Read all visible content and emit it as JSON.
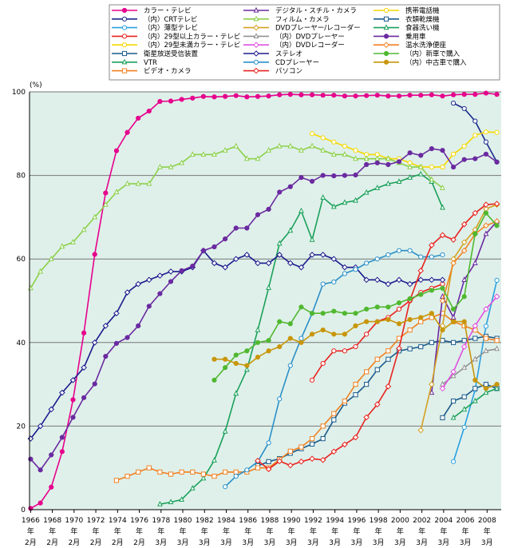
{
  "chart_data": {
    "type": "line",
    "ylabel": "(%)",
    "ylim": [
      0,
      100
    ],
    "yticks": [
      0,
      20,
      40,
      60,
      80,
      100
    ],
    "xlim": [
      1966.0,
      2009.4
    ],
    "xtick_years": [
      1966,
      1968,
      1970,
      1972,
      1974,
      1976,
      1978,
      1980,
      1982,
      1984,
      1986,
      1988,
      1990,
      1992,
      1994,
      1996,
      1998,
      2000,
      2002,
      2004,
      2006,
      2008
    ],
    "xtick_month_labels": [
      "2月",
      "2月",
      "2月",
      "2月",
      "2月",
      "2月",
      "3月",
      "3月",
      "3月",
      "3月",
      "3月",
      "3月",
      "3月",
      "3月",
      "3月",
      "3月",
      "3月",
      "3月",
      "3月",
      "3月",
      "3月",
      "3月"
    ],
    "xtick_nen": "年",
    "grid": true,
    "background": "#dff0ea",
    "legend_position": "top",
    "series": [
      {
        "name": "カラー・テレビ",
        "color": "#e6008c",
        "marker": "circle",
        "dash": "",
        "x": [
          1966.1,
          1967,
          1968,
          1969,
          1970,
          1971,
          1972,
          1973,
          1974,
          1975,
          1976,
          1977,
          1978,
          1979,
          1980,
          1981,
          1982,
          1983,
          1984,
          1985,
          1986,
          1987,
          1988,
          1989,
          1990,
          1991,
          1992,
          1993,
          1994,
          1995,
          1996,
          1997,
          1998,
          1999,
          2000,
          2001,
          2002,
          2003,
          2004,
          2005,
          2006,
          2007,
          2008,
          2009
        ],
        "y": [
          0.3,
          1.6,
          5.4,
          13.9,
          26.3,
          42.3,
          61.1,
          75.8,
          85.9,
          90.3,
          93.7,
          95.4,
          97.7,
          97.8,
          98.2,
          98.5,
          98.9,
          98.8,
          98.9,
          99.1,
          98.8,
          98.9,
          99.0,
          99.3,
          99.4,
          99.3,
          99.3,
          99.2,
          99.2,
          99.0,
          99.0,
          99.1,
          99.2,
          99.0,
          99.0,
          99.2,
          99.2,
          99.3,
          99.0,
          99.3,
          99.4,
          99.4,
          99.7,
          99.4
        ]
      },
      {
        "name": "（内）CRTテレビ",
        "color": "#1a2a8c",
        "marker": "circle-open",
        "dash": "",
        "x": [
          2005,
          2006,
          2007,
          2008,
          2009
        ],
        "y": [
          97.3,
          96.0,
          93.0,
          88.0,
          83.2
        ]
      },
      {
        "name": "（内）薄型テレビ",
        "color": "#2aa0e0",
        "marker": "circle-open",
        "dash": "",
        "x": [
          2005,
          2006,
          2007,
          2008,
          2009
        ],
        "y": [
          11.5,
          19.7,
          28.7,
          43.9,
          54.9
        ]
      },
      {
        "name": "（内）29型以上カラー・テレビ",
        "color": "#e8221e",
        "marker": "circle-open",
        "dash": "",
        "x": [
          1992,
          1993,
          1994,
          1995,
          1996,
          1997,
          1998,
          1999,
          2000,
          2001,
          2002,
          2003,
          2004
        ],
        "y": [
          31,
          35,
          38,
          38,
          39,
          42,
          45,
          46,
          48,
          50,
          52,
          53,
          54
        ]
      },
      {
        "name": "（内）29型未満カラー・テレビ",
        "color": "#f5d800",
        "marker": "circle-open",
        "dash": "",
        "x": [
          1992,
          1993,
          1994,
          1995,
          1996,
          1997,
          1998,
          1999,
          2000,
          2001,
          2002,
          2003,
          2004
        ],
        "y": [
          90,
          89,
          88,
          87,
          86,
          85,
          85,
          84,
          84,
          83,
          82,
          82,
          82
        ]
      },
      {
        "name": "衛星放送受信装置",
        "color": "#1a5a8c",
        "marker": "square-open",
        "dash": "",
        "x": [
          1987,
          1988,
          1989,
          1990,
          1991,
          1992,
          1993,
          1994,
          1995,
          1996,
          1997,
          1998,
          1999,
          2000,
          2001,
          2002,
          2003,
          2004,
          2005,
          2006,
          2007,
          2008,
          2009
        ],
        "y": [
          10.5,
          11.5,
          12.2,
          13.5,
          14.6,
          15.7,
          17.0,
          21.5,
          25.5,
          27.5,
          30.0,
          33.5,
          36.0,
          38.0,
          38.5,
          39.0,
          40.0,
          40.5,
          40.0,
          40.5,
          41.0,
          41.5,
          41.0
        ]
      },
      {
        "name": "VTR",
        "color": "#1aa05a",
        "marker": "triangle-open",
        "dash": "",
        "x": [
          1978,
          1979,
          1980,
          1981,
          1982,
          1983,
          1984,
          1985,
          1986,
          1987,
          1988,
          1989,
          1990,
          1991,
          1992,
          1993,
          1994,
          1995,
          1996,
          1997,
          1998,
          1999,
          2000,
          2001,
          2002,
          2003,
          2004
        ],
        "y": [
          1.3,
          1.8,
          2.4,
          5.1,
          7.5,
          11.8,
          18.7,
          27.8,
          33.5,
          43.0,
          53.1,
          63.7,
          66.8,
          71.5,
          64.6,
          74.7,
          72.5,
          73.5,
          74.0,
          75.9,
          77.0,
          78.0,
          78.5,
          79.5,
          80.3,
          78.5,
          72.3
        ]
      },
      {
        "name": "ビデオ・カメラ",
        "color": "#f08020",
        "marker": "square-open",
        "dash": "",
        "x": [
          1974,
          1975,
          1976,
          1977,
          1978,
          1979,
          1980,
          1981,
          1982,
          1983,
          1984,
          1985,
          1986,
          1987,
          1988,
          1989,
          1990,
          1991,
          1992,
          1993,
          1994,
          1995,
          1996,
          1997,
          1998,
          1999,
          2000,
          2001,
          2002,
          2003,
          2004,
          2005,
          2006,
          2007,
          2008,
          2009
        ],
        "y": [
          7,
          8,
          9,
          10,
          9,
          8.5,
          9,
          9,
          8.5,
          8,
          9,
          9,
          9,
          10,
          10,
          12,
          14,
          15,
          17,
          20,
          23,
          26,
          30,
          33,
          36,
          38,
          41,
          43,
          45,
          46,
          47,
          45,
          44,
          43,
          41,
          40.5
        ]
      },
      {
        "name": "デジタル・スチル・カメラ",
        "color": "#6a2aa0",
        "marker": "triangle-open",
        "dash": "",
        "x": [
          2003,
          2004,
          2005,
          2006,
          2007,
          2008,
          2009
        ],
        "y": [
          28,
          51,
          46,
          55,
          59,
          66,
          69
        ]
      },
      {
        "name": "フィルム・カメラ",
        "color": "#8cd04a",
        "marker": "triangle-open",
        "dash": "",
        "x": [
          1966.1,
          1967,
          1968,
          1969,
          1970,
          1971,
          1972,
          1973,
          1974,
          1975,
          1976,
          1977,
          1978,
          1979,
          1980,
          1981,
          1982,
          1983,
          1984,
          1985,
          1986,
          1987,
          1988,
          1989,
          1990,
          1991,
          1992,
          1993,
          1994,
          1995,
          1996,
          1997,
          1998,
          1999,
          2000,
          2001,
          2002,
          2003,
          2004
        ],
        "y": [
          53,
          57,
          60,
          63,
          64,
          67,
          70,
          73,
          76,
          78,
          78,
          78,
          82,
          82,
          83,
          85,
          85,
          85,
          86,
          87,
          84,
          84,
          86,
          87,
          87,
          86,
          87,
          86,
          85,
          85,
          84,
          84,
          84,
          84,
          83,
          82,
          82,
          79,
          77
        ]
      },
      {
        "name": "DVDプレーヤー/レコーダー",
        "color": "#d4a020",
        "marker": "diamond-open",
        "dash": "",
        "x": [
          2002,
          2003,
          2004,
          2005,
          2006,
          2007,
          2008,
          2009
        ],
        "y": [
          19,
          30,
          44,
          60,
          64,
          67,
          72,
          73
        ]
      },
      {
        "name": "（内）DVDプレーヤー",
        "color": "#909090",
        "marker": "triangle-open",
        "dash": "",
        "x": [
          2004,
          2005,
          2006,
          2007,
          2008,
          2009
        ],
        "y": [
          30,
          32,
          34,
          36,
          38,
          38.5
        ]
      },
      {
        "name": "（内）DVDレコーダー",
        "color": "#e050e0",
        "marker": "diamond-open",
        "dash": "",
        "x": [
          2004,
          2005,
          2006,
          2007,
          2008,
          2009
        ],
        "y": [
          29,
          33,
          39,
          44,
          48,
          51
        ]
      },
      {
        "name": "ステレオ",
        "color": "#1a1a8c",
        "marker": "diamond-open",
        "dash": "",
        "x": [
          1966.1,
          1967,
          1968,
          1969,
          1970,
          1971,
          1972,
          1973,
          1974,
          1975,
          1976,
          1977,
          1978,
          1979,
          1980,
          1981,
          1982,
          1983,
          1984,
          1985,
          1986,
          1987,
          1988,
          1989,
          1990,
          1991,
          1992,
          1993,
          1994,
          1995,
          1996,
          1997,
          1998,
          1999,
          2000,
          2001,
          2002,
          2003,
          2004
        ],
        "y": [
          17,
          20,
          24,
          28,
          31,
          34,
          40,
          44,
          47,
          52,
          54,
          55,
          56,
          57,
          57,
          58,
          62,
          59,
          58,
          60,
          61,
          59,
          59,
          61,
          59,
          58,
          61,
          61,
          60,
          58,
          58,
          55,
          55,
          54,
          55,
          54,
          55,
          55,
          55
        ]
      },
      {
        "name": "CDプレーヤー",
        "color": "#2a90c8",
        "marker": "circle-open",
        "dash": "",
        "x": [
          1984,
          1985,
          1986,
          1987,
          1988,
          1989,
          1990,
          1991,
          1992,
          1993,
          1994,
          1995,
          1996,
          1997,
          1998,
          1999,
          2000,
          2001,
          2002,
          2003,
          2004
        ],
        "y": [
          5.5,
          8.0,
          9.5,
          11.5,
          16.0,
          26.5,
          34.5,
          41.0,
          47.0,
          54.0,
          54.5,
          56.5,
          57.5,
          59.0,
          60.0,
          61.0,
          62.0,
          62.0,
          60.5,
          60.5,
          61.0
        ]
      },
      {
        "name": "パソコン",
        "color": "#e8221e",
        "marker": "diamond-open",
        "dash": "",
        "x": [
          1987,
          1988,
          1989,
          1990,
          1991,
          1992,
          1993,
          1994,
          1995,
          1996,
          1997,
          1998,
          1999,
          2000,
          2001,
          2002,
          2003,
          2004,
          2005,
          2006,
          2007,
          2008,
          2009
        ],
        "y": [
          11.7,
          9.7,
          11.6,
          10.6,
          11.5,
          12.2,
          11.9,
          13.9,
          15.6,
          17.3,
          22.1,
          25.2,
          29.5,
          38.6,
          50.1,
          57.2,
          63.3,
          65.7,
          64.6,
          68.3,
          71.0,
          73.0,
          73.2
        ]
      },
      {
        "name": "携帯電話機",
        "color": "#f5d800",
        "marker": "circle-open",
        "dash": "",
        "x": [
          2004,
          2005,
          2006,
          2007,
          2008,
          2009
        ],
        "y": [
          82.0,
          85.1,
          87.0,
          89.6,
          90.4,
          90.3
        ]
      },
      {
        "name": "衣類乾燥機",
        "color": "#1a5a8c",
        "marker": "square-open",
        "dash": "",
        "x": [
          2004,
          2005,
          2006,
          2007,
          2008,
          2009
        ],
        "y": [
          22,
          26,
          27,
          29,
          30,
          29
        ]
      },
      {
        "name": "食器洗い機",
        "color": "#1aa05a",
        "marker": "triangle-open",
        "dash": "",
        "x": [
          2005,
          2006,
          2007,
          2008,
          2009
        ],
        "y": [
          22,
          24,
          26,
          28,
          29
        ]
      },
      {
        "name": "乗用車",
        "color": "#6a2aa0",
        "marker": "circle",
        "dash": "",
        "x": [
          1966.1,
          1967,
          1968,
          1969,
          1970,
          1971,
          1972,
          1973,
          1974,
          1975,
          1976,
          1977,
          1978,
          1979,
          1980,
          1981,
          1982,
          1983,
          1984,
          1985,
          1986,
          1987,
          1988,
          1989,
          1990,
          1991,
          1992,
          1993,
          1994,
          1995,
          1996,
          1997,
          1998,
          1999,
          2000,
          2001,
          2002,
          2003,
          2004,
          2005,
          2006,
          2007,
          2008,
          2009
        ],
        "y": [
          12.1,
          9.5,
          13.1,
          17.3,
          22.1,
          26.8,
          30.1,
          36.7,
          39.8,
          41.2,
          44.0,
          48.7,
          51.7,
          54.6,
          57.2,
          58.3,
          62.0,
          62.9,
          64.8,
          67.4,
          67.4,
          70.6,
          71.9,
          76.0,
          77.3,
          79.5,
          78.6,
          80.0,
          79.9,
          80.0,
          80.1,
          82.6,
          83.0,
          82.6,
          83.3,
          85.4,
          84.8,
          86.4,
          86.0,
          82.0,
          83.8,
          84.0,
          85.1,
          83.2
        ]
      },
      {
        "name": "温水洗浄便座",
        "color": "#f08020",
        "marker": "diamond-open",
        "dash": "",
        "x": [
          2004,
          2005,
          2006,
          2007,
          2008,
          2009
        ],
        "y": [
          50,
          59,
          62,
          66,
          68,
          69
        ]
      },
      {
        "name": "（内）新車で購入",
        "color": "#50b830",
        "marker": "circle",
        "dash": "",
        "x": [
          1983,
          1984,
          1985,
          1986,
          1987,
          1988,
          1989,
          1990,
          1991,
          1992,
          1993,
          1994,
          1995,
          1996,
          1997,
          1998,
          1999,
          2000,
          2001,
          2002,
          2003,
          2004,
          2005,
          2006,
          2007,
          2008,
          2009
        ],
        "y": [
          31,
          34,
          37,
          38,
          40,
          40.5,
          45,
          44.5,
          48.5,
          47,
          47,
          47.5,
          47,
          47,
          48,
          48.5,
          48.5,
          49.5,
          50.5,
          51.5,
          52.5,
          53,
          48,
          51,
          66,
          71,
          68
        ]
      },
      {
        "name": "（内）中古車で購入",
        "color": "#c8960a",
        "marker": "circle",
        "dash": "",
        "x": [
          1983,
          1984,
          1985,
          1986,
          1987,
          1988,
          1989,
          1990,
          1991,
          1992,
          1993,
          1994,
          1995,
          1996,
          1997,
          1998,
          1999,
          2000,
          2001,
          2002,
          2003,
          2004,
          2005,
          2006,
          2007,
          2008,
          2009
        ],
        "y": [
          36,
          36,
          35,
          34.5,
          36.5,
          38,
          39,
          41,
          40,
          42,
          43,
          42,
          42,
          44,
          45,
          45,
          45.5,
          44.5,
          45.5,
          46,
          47,
          43,
          45,
          45,
          31,
          29,
          30
        ]
      }
    ]
  }
}
